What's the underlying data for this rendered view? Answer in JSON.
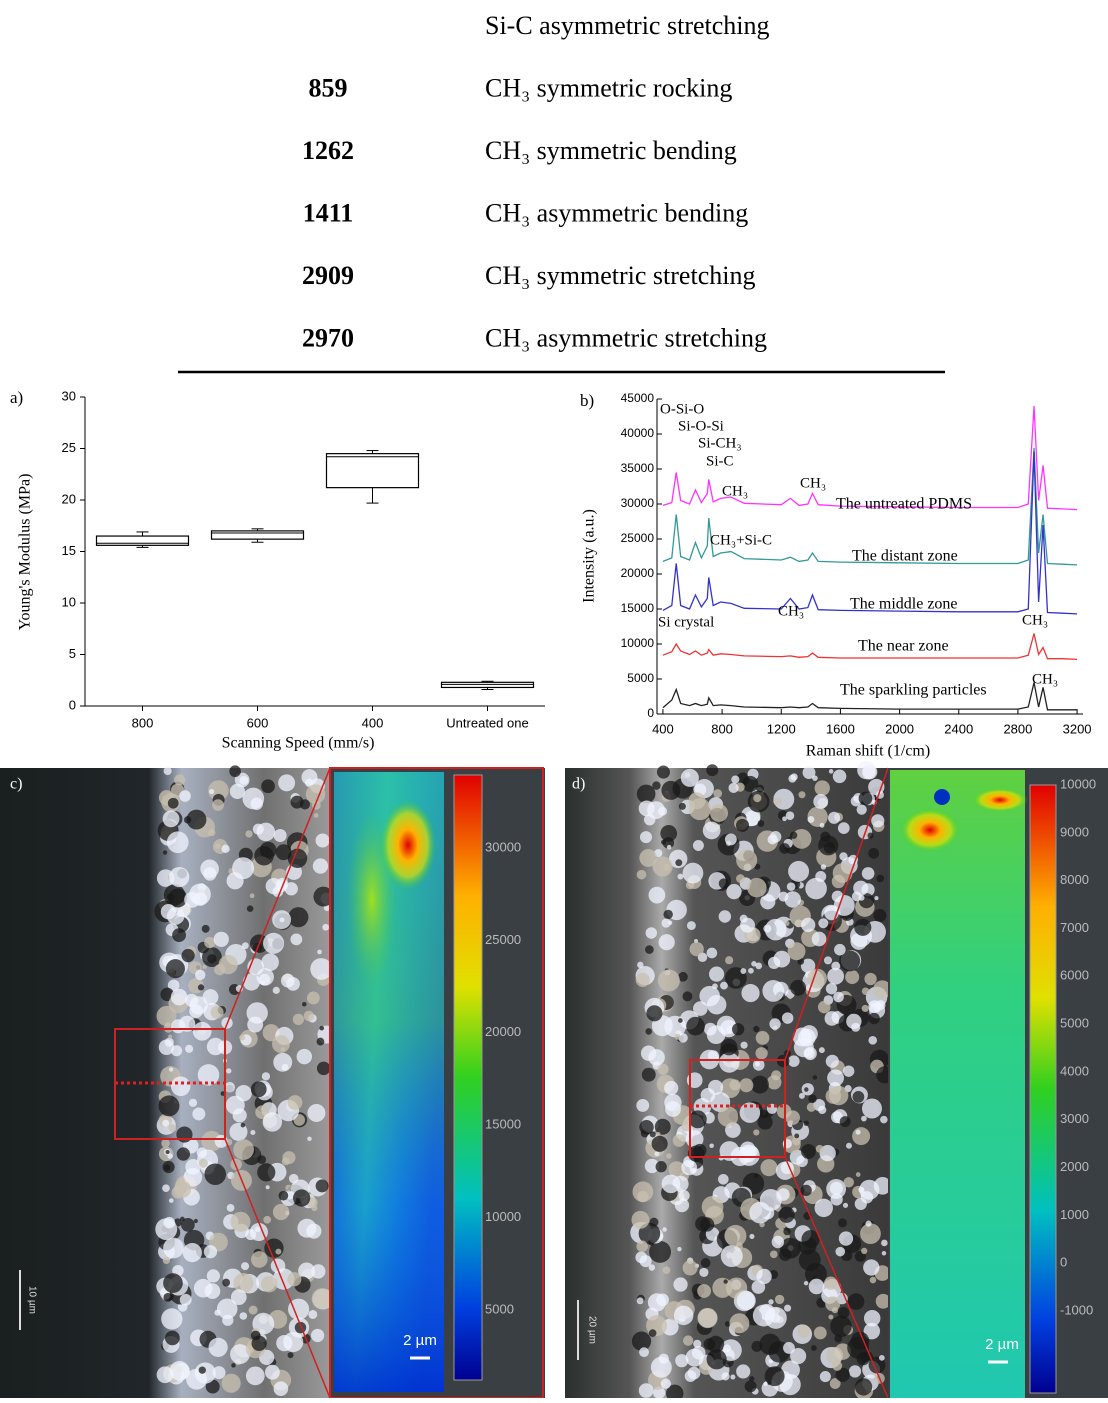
{
  "table": {
    "rows": [
      {
        "assignment": "Si-C asymmetric stretching"
      },
      {
        "wavenumber": "859",
        "assignment": "CH₃ symmetric rocking"
      },
      {
        "wavenumber": "1262",
        "assignment": "CH₃ symmetric bending"
      },
      {
        "wavenumber": "1411",
        "assignment": "CH₃ asymmetric bending"
      },
      {
        "wavenumber": "2909",
        "assignment": "CH₃ symmetric stretching"
      },
      {
        "wavenumber": "2970",
        "assignment": "CH₃ asymmetric stretching"
      }
    ]
  },
  "chart_data": [
    {
      "type": "box",
      "panel_label": "a)",
      "x_label": "Scanning Speed (mm/s)",
      "y_label": "Young's Modulus (MPa)",
      "categories": [
        "800",
        "600",
        "400",
        "Untreated one"
      ],
      "min": [
        15.4,
        15.9,
        19.7,
        1.6
      ],
      "q1": [
        15.6,
        16.2,
        21.2,
        1.8
      ],
      "median": [
        15.8,
        16.8,
        24.2,
        2.1
      ],
      "q3": [
        16.5,
        17.0,
        24.5,
        2.3
      ],
      "max": [
        16.9,
        17.2,
        24.8,
        2.4
      ],
      "ylim": [
        0,
        30
      ],
      "yticks": [
        0,
        5,
        10,
        15,
        20,
        25,
        30
      ],
      "color": "#000000"
    },
    {
      "type": "line",
      "panel_label": "b)",
      "x_label": "Raman shift (1/cm)",
      "y_label": "Intensity (a.u.)",
      "x": [
        400,
        460,
        490,
        520,
        580,
        620,
        660,
        700,
        710,
        740,
        790,
        860,
        950,
        1200,
        1262,
        1320,
        1380,
        1411,
        1450,
        1600,
        2000,
        2400,
        2800,
        2870,
        2909,
        2940,
        2970,
        3000,
        3100,
        3200
      ],
      "series": [
        {
          "name": "The untreated PDMS",
          "color": "#ff33ff",
          "values": [
            29800,
            30200,
            34500,
            30500,
            30000,
            32000,
            30200,
            31500,
            33500,
            30300,
            30800,
            31000,
            30100,
            29900,
            30800,
            29800,
            30000,
            31500,
            29900,
            29700,
            29600,
            29500,
            29500,
            30000,
            44000,
            30500,
            35500,
            29400,
            29300,
            29200
          ]
        },
        {
          "name": "The distant zone",
          "color": "#339999",
          "values": [
            21800,
            22300,
            28500,
            22500,
            22000,
            24500,
            22300,
            24000,
            28000,
            22500,
            23000,
            23200,
            22200,
            22000,
            22400,
            21800,
            22000,
            23000,
            21800,
            21700,
            21600,
            21500,
            21500,
            22000,
            38000,
            23000,
            28500,
            21500,
            21400,
            21300
          ]
        },
        {
          "name": "The middle zone",
          "color": "#3333cc",
          "values": [
            14800,
            15500,
            21500,
            15500,
            15000,
            17000,
            15300,
            16500,
            19500,
            15500,
            16000,
            15800,
            15100,
            15000,
            16500,
            15000,
            15200,
            17000,
            14900,
            14800,
            14700,
            14600,
            14600,
            15000,
            37500,
            16000,
            27000,
            14500,
            14400,
            14300
          ]
        },
        {
          "name": "The near zone",
          "color": "#ee3333",
          "values": [
            8400,
            8900,
            10000,
            9000,
            8500,
            9000,
            8400,
            8700,
            9200,
            8400,
            8600,
            8500,
            8300,
            8200,
            8300,
            8100,
            8200,
            8700,
            8100,
            8000,
            8000,
            8000,
            8000,
            8400,
            11500,
            8500,
            9500,
            7900,
            7900,
            7800
          ]
        },
        {
          "name": "The sparkling particles",
          "color": "#222222",
          "values": [
            900,
            2000,
            3500,
            1500,
            1200,
            1500,
            1200,
            1400,
            2300,
            1200,
            1300,
            1200,
            1000,
            900,
            1000,
            900,
            1000,
            1500,
            900,
            800,
            700,
            700,
            700,
            1000,
            4500,
            1000,
            3800,
            600,
            600,
            600
          ]
        }
      ],
      "annotations": [
        "O-Si-O",
        "Si-O-Si",
        "Si-CH₃",
        "Si-C",
        "CH₃",
        "CH₃",
        "CH₃+Si-C",
        "CH₃",
        "Si crystal",
        "CH₃",
        "CH₃"
      ],
      "xlim": [
        360,
        3240
      ],
      "xticks": [
        400,
        800,
        1200,
        1600,
        2000,
        2400,
        2800,
        3200
      ],
      "ylim": [
        0,
        45000
      ],
      "yticks": [
        0,
        5000,
        10000,
        15000,
        20000,
        25000,
        30000,
        35000,
        40000,
        45000
      ]
    }
  ],
  "images": [
    {
      "panel_label": "c)",
      "scale_bar": "10 µm",
      "inset_scale": "2 µm",
      "colorbar_ticks": [
        "30000",
        "25000",
        "20000",
        "15000",
        "10000",
        "5000"
      ]
    },
    {
      "panel_label": "d)",
      "scale_bar": "20 µm",
      "inset_scale": "2 µm",
      "colorbar_ticks": [
        "10000",
        "9000",
        "8000",
        "7000",
        "6000",
        "5000",
        "4000",
        "3000",
        "2000",
        "1000",
        "0",
        "-1000"
      ]
    }
  ]
}
